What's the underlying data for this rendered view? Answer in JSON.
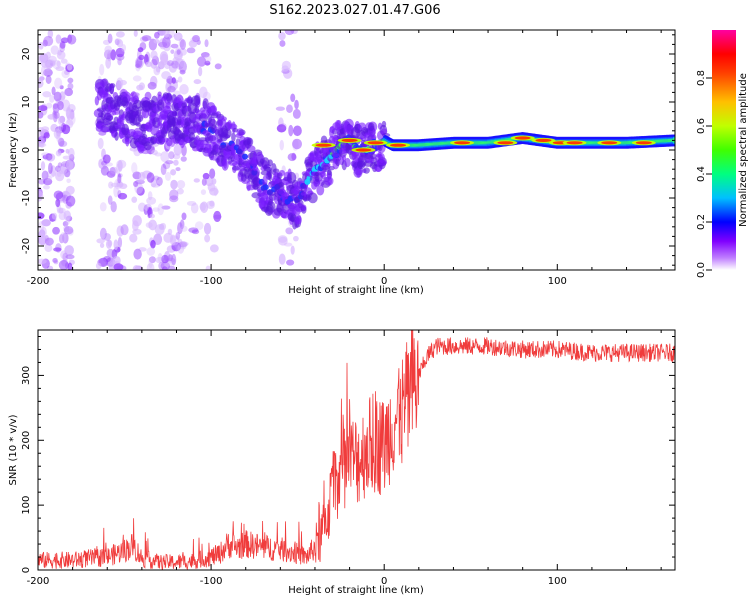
{
  "title": "S162.2023.027.01.47.G06",
  "chart_data": [
    {
      "type": "heatmap",
      "xlabel": "Height of straight line (km)",
      "ylabel": "Frequency (Hz)",
      "xlim": [
        -200,
        168
      ],
      "ylim": [
        -25,
        25
      ],
      "x_ticks": [
        -200,
        -100,
        0,
        100
      ],
      "y_ticks": [
        -20,
        -10,
        0,
        10,
        20
      ],
      "colorbar": {
        "label": "Normalized spectral amplitude",
        "ticks": [
          "0.0",
          "0.2",
          "0.4",
          "0.6",
          "0.8"
        ],
        "range": [
          0,
          1
        ],
        "colormap": [
          "#ffffff",
          "#c080ff",
          "#8000ff",
          "#0000ff",
          "#00c0ff",
          "#00ff80",
          "#80ff00",
          "#ffff00",
          "#ff8000",
          "#ff0000",
          "#ff00a0"
        ]
      },
      "ridge": {
        "x": [
          -160,
          -150,
          -140,
          -120,
          -110,
          -100,
          -90,
          -80,
          -70,
          -60,
          -50,
          -45,
          -40,
          -35,
          -30,
          -25,
          -20,
          -15,
          -10,
          -5,
          0,
          5,
          10,
          20,
          40,
          60,
          80,
          90,
          100,
          110,
          120,
          140,
          168
        ],
        "freq": [
          9,
          7,
          5,
          7,
          6,
          4,
          1,
          -2,
          -7,
          -9,
          -11,
          -7,
          -4,
          -3,
          -1,
          1,
          2,
          0,
          0,
          1,
          2,
          1,
          1,
          1,
          1.5,
          1.5,
          2.5,
          2,
          1.5,
          1.5,
          1.5,
          1.5,
          2
        ]
      }
    },
    {
      "type": "line",
      "xlabel": "Height of straight line (km)",
      "ylabel": "SNR (10 * v/v)",
      "xlim": [
        -200,
        168
      ],
      "ylim": [
        0,
        370
      ],
      "x_ticks": [
        -200,
        -100,
        0,
        100
      ],
      "y_ticks": [
        0,
        100,
        200,
        300
      ],
      "color": "#f03c3c",
      "series": [
        {
          "x": [
            -200,
            -190,
            -180,
            -170,
            -160,
            -150,
            -145,
            -140,
            -130,
            -120,
            -110,
            -100,
            -95,
            -90,
            -85,
            -80,
            -70,
            -60,
            -50,
            -45,
            -40,
            -35,
            -30,
            -25,
            -20,
            -15,
            -10,
            -5,
            0,
            5,
            10,
            15,
            20,
            25,
            30,
            40,
            60,
            80,
            100,
            120,
            140,
            168
          ],
          "y": [
            15,
            15,
            15,
            18,
            20,
            30,
            38,
            18,
            12,
            12,
            14,
            20,
            25,
            40,
            35,
            40,
            35,
            32,
            25,
            20,
            35,
            60,
            120,
            160,
            170,
            170,
            190,
            195,
            190,
            230,
            240,
            270,
            300,
            330,
            345,
            345,
            345,
            340,
            340,
            335,
            335,
            335
          ]
        }
      ]
    }
  ]
}
